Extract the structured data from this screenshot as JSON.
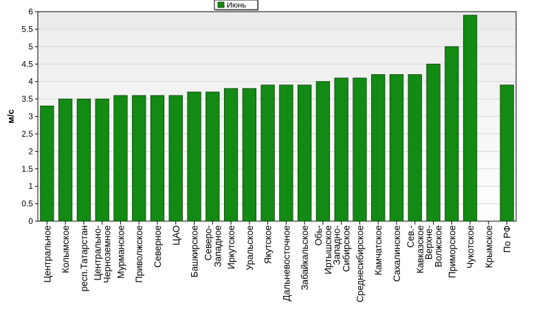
{
  "chart_data": {
    "type": "bar",
    "categories": [
      "Центральное",
      "Колымское",
      "респ.Татарстан",
      "Центрально-\nЧерноземное",
      "Мурманское",
      "Приволжское",
      "Северное",
      "ЦАО",
      "Башкирское",
      "Северо-\nЗападное",
      "Иркутское",
      "Уральское",
      "Якутское",
      "Дальневосточное",
      "Забайкальское",
      "Обь-\nИртышское",
      "Западно-\nСибирское",
      "Среднесибирское",
      "Камчатское",
      "Сахалинское",
      "Сев.-\nКавказское",
      "Верхне-\nВолжское",
      "Приморское",
      "Чукотское",
      "Крымское",
      "По РФ"
    ],
    "series": [
      {
        "name": "Июнь",
        "values": [
          3.3,
          3.5,
          3.5,
          3.5,
          3.6,
          3.6,
          3.6,
          3.6,
          3.7,
          3.7,
          3.8,
          3.8,
          3.9,
          3.9,
          3.9,
          4.0,
          4.1,
          4.1,
          4.2,
          4.2,
          4.2,
          4.5,
          5.0,
          5.9,
          null,
          3.9
        ]
      }
    ],
    "ylabel": "м/с",
    "ylim": [
      0,
      6
    ],
    "yticks": [
      "0",
      "0.5",
      "1",
      "1.5",
      "2",
      "2.5",
      "3",
      "3.5",
      "4",
      "4.5",
      "5",
      "5.5",
      "6"
    ],
    "grid": true,
    "legend": "top-center",
    "colors": {
      "bar": "#138a13",
      "bar_border": "#0a3d0a",
      "plot_bg_top": "#ebebeb",
      "plot_bg_bottom": "#ffffff",
      "grid": "#d8d8d8"
    }
  }
}
